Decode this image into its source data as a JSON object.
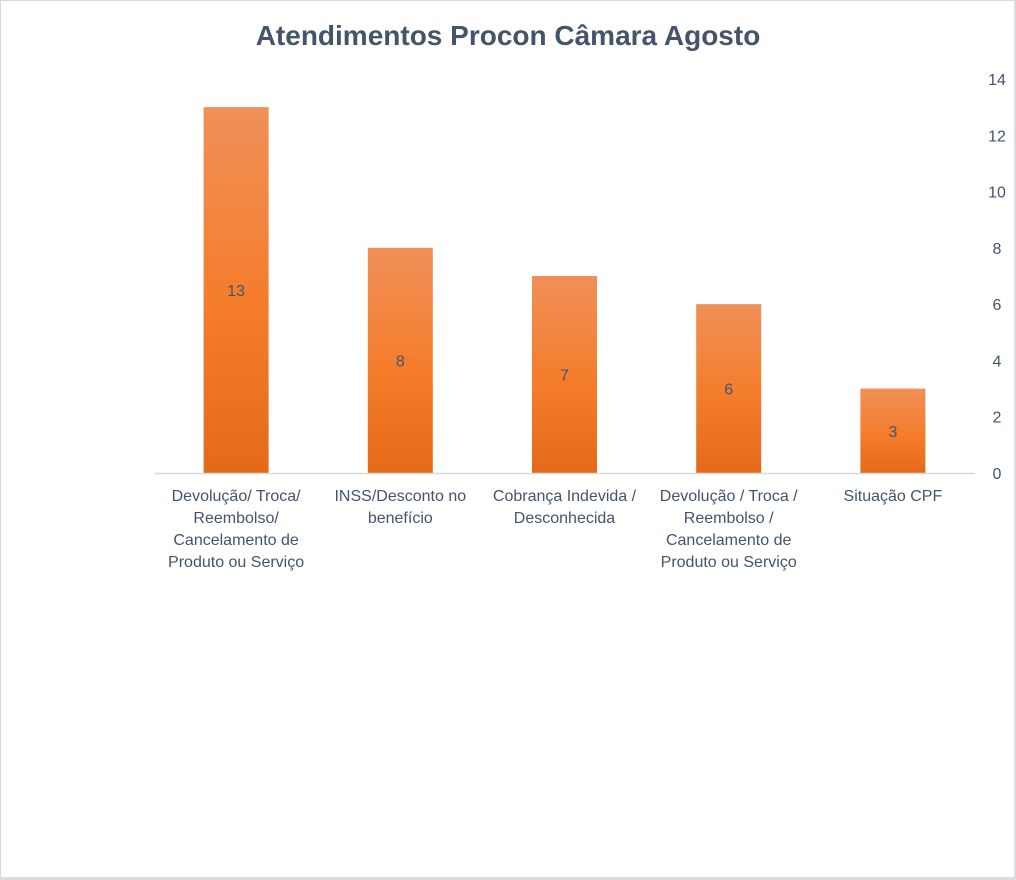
{
  "chart_data": {
    "type": "bar",
    "title": "Atendimentos Procon Câmara Agosto",
    "categories": [
      "Devolução/ Troca/ Reembolso/ Cancelamento de Produto ou Serviço",
      "INSS/Desconto no benefício",
      "Cobrança Indevida / Desconhecida",
      "Devolução / Troca / Reembolso / Cancelamento de Produto ou Serviço",
      "Situação CPF"
    ],
    "values": [
      13,
      8,
      7,
      6,
      3
    ],
    "ylim": [
      0,
      14
    ],
    "yticks": [
      0,
      2,
      4,
      6,
      8,
      10,
      12,
      14
    ],
    "y_axis_position": "right",
    "xlabel": "",
    "ylabel": "",
    "grid": false,
    "legend": "none",
    "colors": {
      "bar_top": "#f09058",
      "bar_mid": "#f47c2a",
      "bar_bottom": "#e46a19",
      "text": "#44546a",
      "axis": "#d9d9d9"
    }
  }
}
